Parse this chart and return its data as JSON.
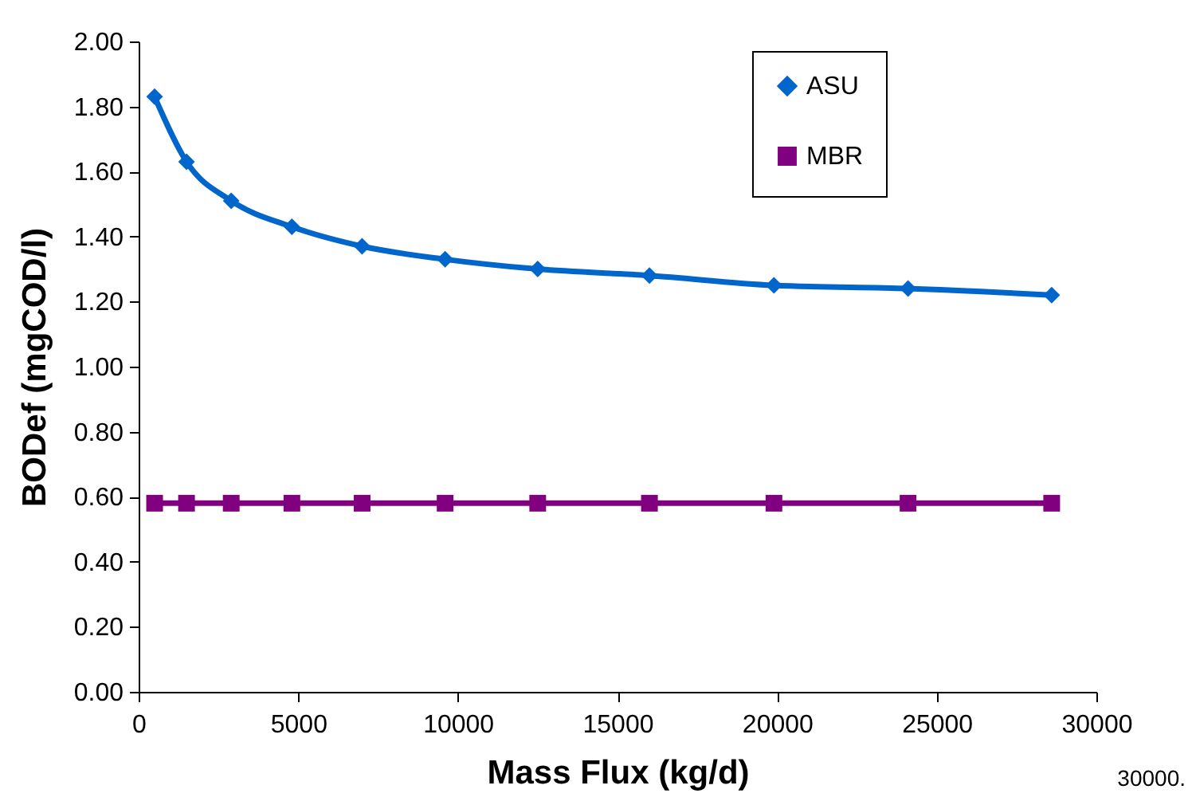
{
  "chart_data": {
    "type": "line",
    "xlabel": "Mass Flux (kg/d)",
    "ylabel": "BODef (mgCOD/l)",
    "x": [
      500,
      1500,
      2900,
      4800,
      7000,
      9600,
      12500,
      16000,
      19900,
      24100,
      28600
    ],
    "series": [
      {
        "name": "ASU",
        "color": "#0066cc",
        "marker": "diamond",
        "values": [
          1.83,
          1.63,
          1.51,
          1.43,
          1.37,
          1.33,
          1.3,
          1.28,
          1.25,
          1.24,
          1.22
        ]
      },
      {
        "name": "MBR",
        "color": "#800080",
        "marker": "square",
        "values": [
          0.58,
          0.58,
          0.58,
          0.58,
          0.58,
          0.58,
          0.58,
          0.58,
          0.58,
          0.58,
          0.58
        ]
      }
    ],
    "xlim": [
      0,
      30000
    ],
    "xticks": [
      0,
      5000,
      10000,
      15000,
      20000,
      25000,
      30000
    ],
    "ylim": [
      0,
      2
    ],
    "yticks": [
      {
        "value": 0,
        "label": "0.00"
      },
      {
        "value": 0.2,
        "label": "0.20"
      },
      {
        "value": 0.4,
        "label": "0.40"
      },
      {
        "value": 0.6,
        "label": "0.60"
      },
      {
        "value": 0.8,
        "label": "0.80"
      },
      {
        "value": 1,
        "label": "1.00"
      },
      {
        "value": 1.2,
        "label": "1.20"
      },
      {
        "value": 1.4,
        "label": "1.40"
      },
      {
        "value": 1.6,
        "label": "1.60"
      },
      {
        "value": 1.8,
        "label": "1.80"
      },
      {
        "value": 2,
        "label": "2.00"
      }
    ],
    "legend": "top right",
    "grid": false,
    "line_style": "solid",
    "annotations": [
      "30000."
    ]
  }
}
